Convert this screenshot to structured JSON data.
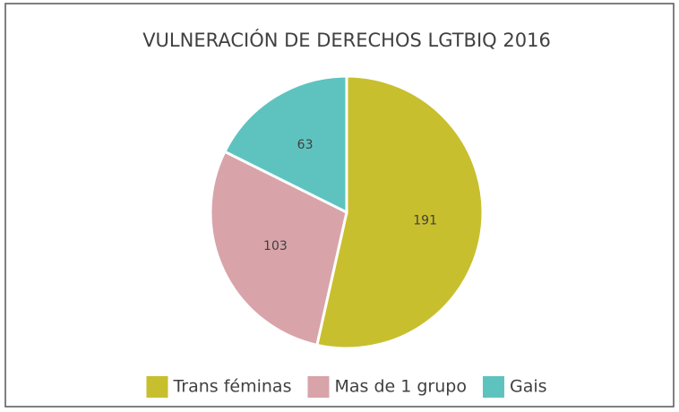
{
  "chart_data": {
    "type": "pie",
    "title": "VULNERACIÓN DE DERECHOS LGTBIQ 2016",
    "categories": [
      "Trans féminas",
      "Mas de 1 grupo",
      "Gais"
    ],
    "values": [
      191,
      103,
      63
    ],
    "colors": [
      "#c8bf2e",
      "#d8a4a9",
      "#5ec3bf"
    ],
    "legend": "bottom"
  }
}
